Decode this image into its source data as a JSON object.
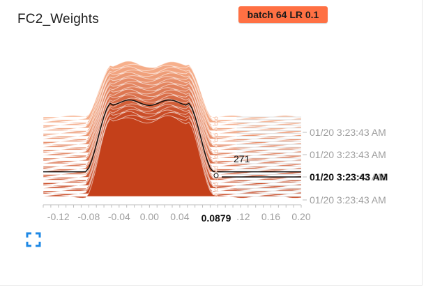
{
  "card": {
    "title": "FC2_Weights",
    "run_badge": "batch 64 LR 0.1",
    "accent_color": "#ff7043"
  },
  "chart_data": {
    "type": "area",
    "x_ticks": [
      "-0.12",
      "-0.08",
      "-0.04",
      "0.00",
      "0.04",
      "0.08",
      "0.12",
      "0.16",
      "0.20"
    ],
    "x_range": [
      -0.14,
      0.2
    ],
    "y_ticks": [
      "01/20 3:23:43 AM",
      "01/20 3:23:43 AM",
      "01/20 3:23:43 AM",
      "01/20 3:23:43 AM"
    ],
    "hover": {
      "x_value": "0.0879",
      "count_value": "271",
      "time_label": "01/20 3:23:43 AM"
    },
    "fill_color": "#c4401a",
    "light_color": "#f4a582"
  },
  "icons": {
    "expand": "expand-icon"
  }
}
